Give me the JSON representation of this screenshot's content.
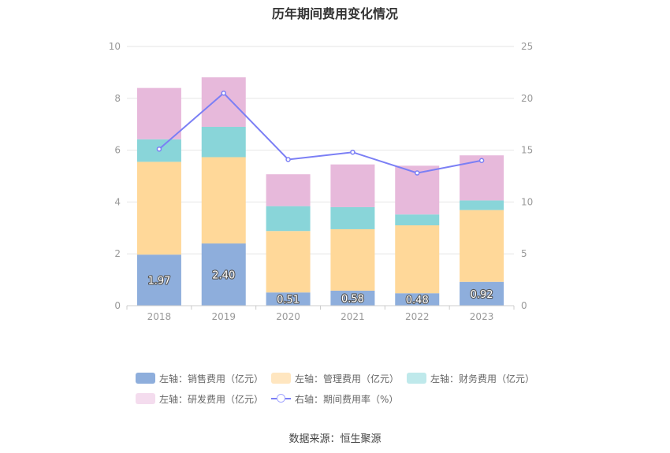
{
  "title": "历年期间费用变化情况",
  "source": "数据来源：恒生聚源",
  "chart_data": {
    "type": "bar",
    "stacked": true,
    "categories": [
      "2018",
      "2019",
      "2020",
      "2021",
      "2022",
      "2023"
    ],
    "series": [
      {
        "name": "左轴：销售费用（亿元）",
        "color": "#8eaedc",
        "values": [
          1.97,
          2.4,
          0.51,
          0.58,
          0.48,
          0.92
        ]
      },
      {
        "name": "左轴：管理费用（亿元）",
        "color": "#ffd899",
        "values": [
          3.58,
          3.33,
          2.37,
          2.37,
          2.62,
          2.77
        ]
      },
      {
        "name": "左轴：财务费用（亿元）",
        "color": "#89d5d9",
        "values": [
          0.87,
          1.17,
          0.96,
          0.85,
          0.42,
          0.37
        ]
      },
      {
        "name": "左轴：研发费用（亿元）",
        "color": "#e7b9db",
        "values": [
          1.98,
          1.91,
          1.23,
          1.65,
          1.88,
          1.74
        ]
      }
    ],
    "line_series": {
      "name": "右轴：期间费用率（%）",
      "color": "#7b7ff5",
      "values": [
        15.1,
        20.5,
        14.1,
        14.8,
        12.8,
        14.0
      ]
    },
    "bar_labels": [
      "1.97",
      "2.40",
      "0.51",
      "0.58",
      "0.48",
      "0.92"
    ],
    "left_axis": {
      "ylim": [
        0,
        10
      ],
      "ticks": [
        "0",
        "2",
        "4",
        "6",
        "8",
        "10"
      ]
    },
    "right_axis": {
      "ylim": [
        0,
        25
      ],
      "ticks": [
        "0",
        "5",
        "10",
        "15",
        "20",
        "25"
      ]
    },
    "grid": true,
    "legend_position": "bottom"
  }
}
